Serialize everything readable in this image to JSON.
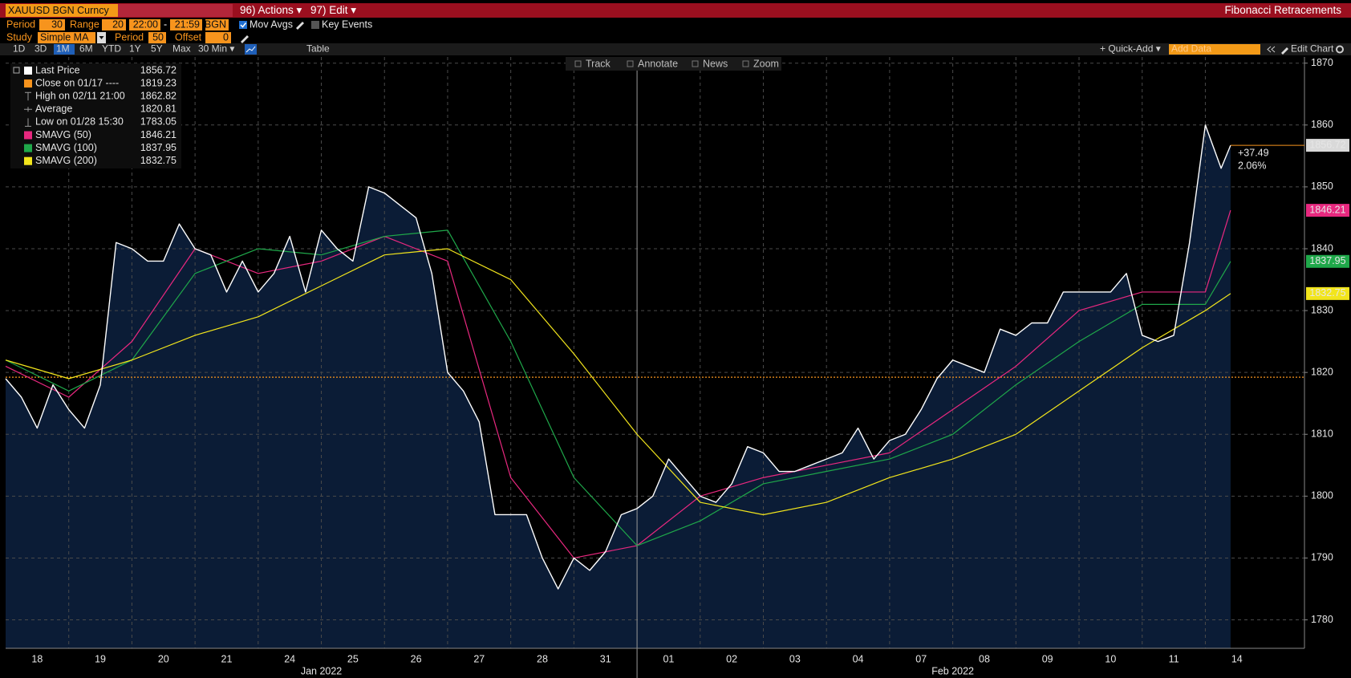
{
  "toolbar": {
    "security": "XAUUSD BGN Curncy",
    "actions": "96) Actions ▾",
    "edit": "97) Edit ▾",
    "title": "Fibonacci Retracements",
    "period_label": "Period",
    "period": 30,
    "range_label": "Range",
    "range": 20,
    "start_time": "22:00",
    "separator": "-",
    "end_time": "21:59",
    "source": "BGN",
    "mov_avgs": "Mov Avgs",
    "key_events": "Key Events",
    "study_label": "Study",
    "study": "Simple MA",
    "study_period_label": "Period",
    "study_period": 50,
    "offset_label": "Offset",
    "offset": 0,
    "ranges": [
      "1D",
      "3D",
      "1M",
      "6M",
      "YTD",
      "1Y",
      "5Y",
      "Max"
    ],
    "interval": "30 Min ▾",
    "table": "Table",
    "quick_add": "+ Quick-Add ▾",
    "add_data": "Add Data",
    "edit_chart": "Edit Chart",
    "tools": [
      "Track",
      "Annotate",
      "News",
      "Zoom"
    ]
  },
  "chart_data": {
    "type": "line",
    "xlim": [
      0,
      20.57
    ],
    "ylim": [
      1775.4,
      1871
    ],
    "xticks": [
      {
        "value": 0.5,
        "label": "18"
      },
      {
        "value": 1.5,
        "label": "19"
      },
      {
        "value": 2.5,
        "label": "20"
      },
      {
        "value": 3.5,
        "label": "21"
      },
      {
        "value": 4.5,
        "label": "24"
      },
      {
        "value": 5.5,
        "label": "25"
      },
      {
        "value": 6.5,
        "label": "26"
      },
      {
        "value": 7.5,
        "label": "27"
      },
      {
        "value": 8.5,
        "label": "28"
      },
      {
        "value": 9.5,
        "label": "31"
      },
      {
        "value": 10.5,
        "label": "01"
      },
      {
        "value": 11.5,
        "label": "02"
      },
      {
        "value": 12.5,
        "label": "03"
      },
      {
        "value": 13.5,
        "label": "04"
      },
      {
        "value": 14.5,
        "label": "07"
      },
      {
        "value": 15.5,
        "label": "08"
      },
      {
        "value": 16.5,
        "label": "09"
      },
      {
        "value": 17.5,
        "label": "10"
      },
      {
        "value": 18.5,
        "label": "11"
      },
      {
        "value": 19.5,
        "label": "14"
      }
    ],
    "month_ticks": [
      {
        "value": 5,
        "label": "Jan 2022"
      },
      {
        "value": 15,
        "label": "Feb 2022"
      }
    ],
    "yticks": [
      1780,
      1790,
      1800,
      1810,
      1820,
      1830,
      1840,
      1850,
      1860,
      1870
    ],
    "grid": true,
    "area_color": "#0b1c36",
    "series": [
      {
        "name": "Last Price",
        "color": "#ffffff",
        "legend_value": 1856.72,
        "x": [
          0,
          0.25,
          0.5,
          0.75,
          1,
          1.25,
          1.5,
          1.75,
          2,
          2.25,
          2.5,
          2.75,
          3,
          3.25,
          3.5,
          3.75,
          4,
          4.25,
          4.5,
          4.75,
          5,
          5.25,
          5.5,
          5.75,
          6,
          6.25,
          6.5,
          6.75,
          7,
          7.25,
          7.5,
          7.75,
          8,
          8.25,
          8.5,
          8.75,
          9,
          9.25,
          9.5,
          9.75,
          10,
          10.25,
          10.5,
          10.75,
          11,
          11.25,
          11.5,
          11.75,
          12,
          12.25,
          12.5,
          12.75,
          13,
          13.25,
          13.5,
          13.75,
          14,
          14.25,
          14.5,
          14.75,
          15,
          15.25,
          15.5,
          15.75,
          16,
          16.25,
          16.5,
          16.75,
          17,
          17.25,
          17.5,
          17.75,
          18,
          18.25,
          18.5,
          18.75,
          19,
          19.25,
          19.4
        ],
        "values": [
          1819,
          1816,
          1811,
          1818,
          1814,
          1811,
          1818,
          1841,
          1840,
          1838,
          1838,
          1844,
          1840,
          1839,
          1833,
          1838,
          1833,
          1836,
          1842,
          1833,
          1843,
          1840,
          1838,
          1850,
          1849,
          1847,
          1845,
          1836,
          1820,
          1817,
          1812,
          1797,
          1797,
          1797,
          1790,
          1785,
          1790,
          1788,
          1791,
          1797,
          1798,
          1800,
          1806,
          1803,
          1800,
          1799,
          1802,
          1808,
          1807,
          1804,
          1804,
          1805,
          1806,
          1807,
          1811,
          1806,
          1809,
          1810,
          1814,
          1819,
          1822,
          1821,
          1820,
          1827,
          1826,
          1828,
          1828,
          1833,
          1833,
          1833,
          1833,
          1836,
          1826,
          1825,
          1826,
          1841,
          1860,
          1853,
          1856.72
        ]
      },
      {
        "name": "SMAVG (50)",
        "color": "#e8287f",
        "legend_value": 1846.21,
        "x": [
          0,
          1,
          2,
          3,
          4,
          5,
          6,
          7,
          8,
          9,
          10,
          11,
          12,
          13,
          14,
          15,
          16,
          17,
          18,
          19,
          19.4
        ],
        "values": [
          1821,
          1816,
          1825,
          1840,
          1836,
          1838,
          1842,
          1838,
          1803,
          1790,
          1792,
          1800,
          1803,
          1805,
          1807,
          1814,
          1821,
          1830,
          1833,
          1833,
          1846.21
        ]
      },
      {
        "name": "SMAVG (100)",
        "color": "#1fa84a",
        "legend_value": 1837.95,
        "x": [
          0,
          1,
          2,
          3,
          4,
          5,
          6,
          7,
          8,
          9,
          10,
          11,
          12,
          13,
          14,
          15,
          16,
          17,
          18,
          19,
          19.4
        ],
        "values": [
          1822,
          1817,
          1822,
          1836,
          1840,
          1839,
          1842,
          1843,
          1825,
          1803,
          1792,
          1796,
          1802,
          1804,
          1806,
          1810,
          1818,
          1825,
          1831,
          1831,
          1837.95
        ]
      },
      {
        "name": "SMAVG (200)",
        "color": "#f2e51c",
        "legend_value": 1832.75,
        "x": [
          0,
          1,
          2,
          3,
          4,
          5,
          6,
          7,
          8,
          9,
          10,
          11,
          12,
          13,
          14,
          15,
          16,
          17,
          18,
          19,
          19.4
        ],
        "values": [
          1822,
          1819,
          1822,
          1826,
          1829,
          1834,
          1839,
          1840,
          1835,
          1823,
          1810,
          1799,
          1797,
          1799,
          1803,
          1806,
          1810,
          1817,
          1824,
          1830,
          1832.75
        ]
      }
    ],
    "stats": [
      {
        "label": "Close on 01/17 ----",
        "value": 1819.23,
        "color": "#f7941d"
      },
      {
        "label": "High on 02/11 21:00",
        "value": 1862.82
      },
      {
        "label": "Average",
        "value": 1820.81
      },
      {
        "label": "Low on 01/28 15:30",
        "value": 1783.05
      }
    ],
    "change": {
      "value": 37.49,
      "label": "+37.49"
    },
    "change_pct": {
      "value": 2.06,
      "label": "2.06%"
    },
    "change_color": "#f7941d"
  }
}
